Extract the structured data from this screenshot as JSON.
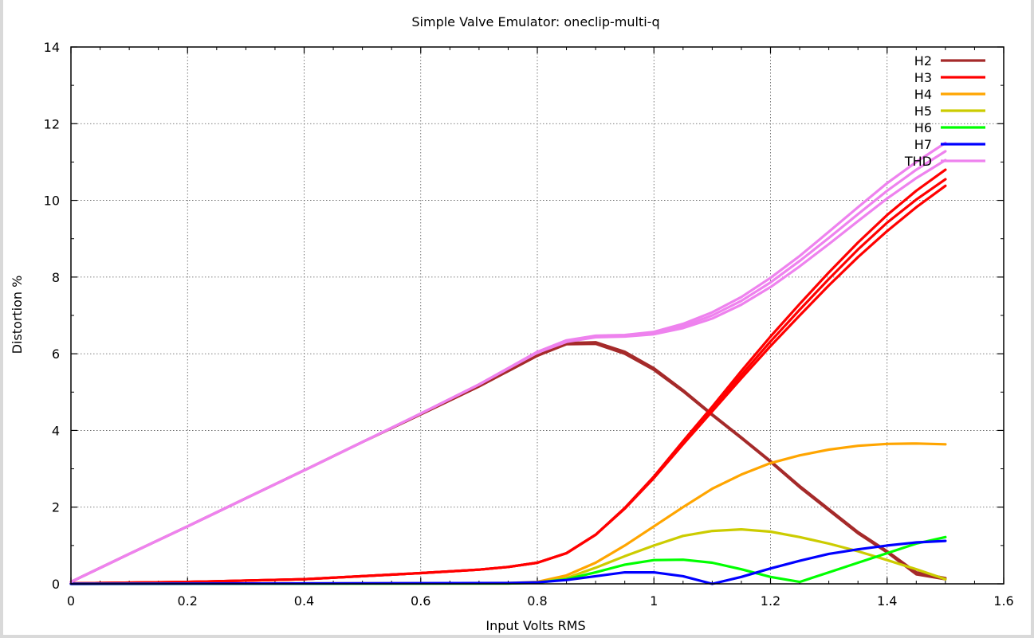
{
  "chart_data": {
    "type": "line",
    "title": "Simple Valve Emulator: oneclip-multi-q",
    "xlabel": "Input Volts RMS",
    "ylabel": "Distortion %",
    "xlim": [
      0,
      1.6
    ],
    "ylim": [
      0,
      14
    ],
    "xticks": [
      "0",
      "0.2",
      "0.4",
      "0.6",
      "0.8",
      "1",
      "1.2",
      "1.4",
      "1.6"
    ],
    "yticks": [
      "0",
      "2",
      "4",
      "6",
      "8",
      "10",
      "12",
      "14"
    ],
    "grid": true,
    "legend_position": "top-right",
    "series": [
      {
        "name": "H2",
        "color": "#a52a2a",
        "lines": [
          [
            [
              0.0,
              0.05
            ],
            [
              0.1,
              0.78
            ],
            [
              0.2,
              1.5
            ],
            [
              0.3,
              2.23
            ],
            [
              0.4,
              2.96
            ],
            [
              0.5,
              3.7
            ],
            [
              0.6,
              4.42
            ],
            [
              0.7,
              5.15
            ],
            [
              0.8,
              5.95
            ],
            [
              0.85,
              6.28
            ],
            [
              0.9,
              6.3
            ],
            [
              0.95,
              6.05
            ],
            [
              1.0,
              5.62
            ],
            [
              1.05,
              5.05
            ],
            [
              1.1,
              4.42
            ],
            [
              1.15,
              3.82
            ],
            [
              1.2,
              3.2
            ],
            [
              1.25,
              2.55
            ],
            [
              1.3,
              1.95
            ],
            [
              1.35,
              1.35
            ],
            [
              1.4,
              0.85
            ],
            [
              1.45,
              0.3
            ],
            [
              1.5,
              0.15
            ]
          ],
          [
            [
              0.0,
              0.05
            ],
            [
              0.1,
              0.78
            ],
            [
              0.2,
              1.5
            ],
            [
              0.3,
              2.23
            ],
            [
              0.4,
              2.96
            ],
            [
              0.5,
              3.7
            ],
            [
              0.6,
              4.42
            ],
            [
              0.7,
              5.15
            ],
            [
              0.8,
              5.95
            ],
            [
              0.85,
              6.25
            ],
            [
              0.9,
              6.26
            ],
            [
              0.95,
              6.0
            ],
            [
              1.0,
              5.58
            ],
            [
              1.05,
              5.02
            ],
            [
              1.1,
              4.4
            ],
            [
              1.15,
              3.8
            ],
            [
              1.2,
              3.18
            ],
            [
              1.25,
              2.52
            ],
            [
              1.3,
              1.92
            ],
            [
              1.35,
              1.32
            ],
            [
              1.4,
              0.82
            ],
            [
              1.45,
              0.25
            ],
            [
              1.5,
              0.12
            ]
          ]
        ]
      },
      {
        "name": "H3",
        "color": "#ff0000",
        "lines": [
          [
            [
              0.0,
              0.01
            ],
            [
              0.2,
              0.05
            ],
            [
              0.4,
              0.12
            ],
            [
              0.6,
              0.28
            ],
            [
              0.7,
              0.37
            ],
            [
              0.75,
              0.44
            ],
            [
              0.8,
              0.55
            ],
            [
              0.85,
              0.8
            ],
            [
              0.9,
              1.28
            ],
            [
              0.95,
              1.98
            ],
            [
              1.0,
              2.8
            ],
            [
              1.05,
              3.72
            ],
            [
              1.1,
              4.62
            ],
            [
              1.15,
              5.55
            ],
            [
              1.2,
              6.45
            ],
            [
              1.25,
              7.3
            ],
            [
              1.3,
              8.12
            ],
            [
              1.35,
              8.9
            ],
            [
              1.4,
              9.62
            ],
            [
              1.45,
              10.25
            ],
            [
              1.5,
              10.8
            ]
          ],
          [
            [
              0.0,
              0.01
            ],
            [
              0.2,
              0.05
            ],
            [
              0.4,
              0.12
            ],
            [
              0.6,
              0.28
            ],
            [
              0.7,
              0.37
            ],
            [
              0.75,
              0.44
            ],
            [
              0.8,
              0.55
            ],
            [
              0.85,
              0.8
            ],
            [
              0.9,
              1.28
            ],
            [
              0.95,
              1.97
            ],
            [
              1.0,
              2.78
            ],
            [
              1.05,
              3.68
            ],
            [
              1.1,
              4.56
            ],
            [
              1.15,
              5.45
            ],
            [
              1.2,
              6.32
            ],
            [
              1.25,
              7.15
            ],
            [
              1.3,
              7.95
            ],
            [
              1.35,
              8.72
            ],
            [
              1.4,
              9.42
            ],
            [
              1.45,
              10.02
            ],
            [
              1.5,
              10.55
            ]
          ],
          [
            [
              0.0,
              0.01
            ],
            [
              0.2,
              0.05
            ],
            [
              0.4,
              0.12
            ],
            [
              0.6,
              0.28
            ],
            [
              0.7,
              0.37
            ],
            [
              0.75,
              0.44
            ],
            [
              0.8,
              0.55
            ],
            [
              0.85,
              0.8
            ],
            [
              0.9,
              1.28
            ],
            [
              0.95,
              1.96
            ],
            [
              1.0,
              2.76
            ],
            [
              1.05,
              3.64
            ],
            [
              1.1,
              4.5
            ],
            [
              1.15,
              5.36
            ],
            [
              1.2,
              6.2
            ],
            [
              1.25,
              7.0
            ],
            [
              1.3,
              7.78
            ],
            [
              1.35,
              8.52
            ],
            [
              1.4,
              9.2
            ],
            [
              1.45,
              9.82
            ],
            [
              1.5,
              10.38
            ]
          ]
        ]
      },
      {
        "name": "H4",
        "color": "#ffa500",
        "lines": [
          [
            [
              0.0,
              0.0
            ],
            [
              0.75,
              0.02
            ],
            [
              0.8,
              0.05
            ],
            [
              0.85,
              0.22
            ],
            [
              0.9,
              0.55
            ],
            [
              0.95,
              1.0
            ],
            [
              1.0,
              1.5
            ],
            [
              1.05,
              2.0
            ],
            [
              1.1,
              2.48
            ],
            [
              1.15,
              2.85
            ],
            [
              1.2,
              3.15
            ],
            [
              1.25,
              3.35
            ],
            [
              1.3,
              3.5
            ],
            [
              1.35,
              3.6
            ],
            [
              1.4,
              3.65
            ],
            [
              1.45,
              3.66
            ],
            [
              1.5,
              3.64
            ]
          ]
        ]
      },
      {
        "name": "H5",
        "color": "#cccc00",
        "lines": [
          [
            [
              0.0,
              0.0
            ],
            [
              0.75,
              0.01
            ],
            [
              0.8,
              0.04
            ],
            [
              0.85,
              0.15
            ],
            [
              0.9,
              0.42
            ],
            [
              0.95,
              0.72
            ],
            [
              1.0,
              1.0
            ],
            [
              1.05,
              1.25
            ],
            [
              1.1,
              1.38
            ],
            [
              1.15,
              1.42
            ],
            [
              1.2,
              1.36
            ],
            [
              1.25,
              1.22
            ],
            [
              1.3,
              1.05
            ],
            [
              1.35,
              0.85
            ],
            [
              1.4,
              0.62
            ],
            [
              1.45,
              0.38
            ],
            [
              1.5,
              0.12
            ]
          ]
        ]
      },
      {
        "name": "H6",
        "color": "#00ff00",
        "lines": [
          [
            [
              0.0,
              0.0
            ],
            [
              0.75,
              0.01
            ],
            [
              0.8,
              0.03
            ],
            [
              0.85,
              0.12
            ],
            [
              0.9,
              0.3
            ],
            [
              0.95,
              0.5
            ],
            [
              1.0,
              0.62
            ],
            [
              1.05,
              0.63
            ],
            [
              1.1,
              0.55
            ],
            [
              1.15,
              0.38
            ],
            [
              1.2,
              0.18
            ],
            [
              1.25,
              0.05
            ],
            [
              1.3,
              0.3
            ],
            [
              1.35,
              0.55
            ],
            [
              1.4,
              0.8
            ],
            [
              1.45,
              1.05
            ],
            [
              1.5,
              1.22
            ]
          ]
        ]
      },
      {
        "name": "H7",
        "color": "#0000ff",
        "lines": [
          [
            [
              0.0,
              0.0
            ],
            [
              0.75,
              0.02
            ],
            [
              0.8,
              0.04
            ],
            [
              0.85,
              0.1
            ],
            [
              0.9,
              0.2
            ],
            [
              0.95,
              0.3
            ],
            [
              1.0,
              0.3
            ],
            [
              1.05,
              0.2
            ],
            [
              1.1,
              0.0
            ],
            [
              1.15,
              0.18
            ],
            [
              1.2,
              0.4
            ],
            [
              1.25,
              0.6
            ],
            [
              1.3,
              0.78
            ],
            [
              1.35,
              0.9
            ],
            [
              1.4,
              1.0
            ],
            [
              1.45,
              1.08
            ],
            [
              1.5,
              1.12
            ]
          ]
        ]
      },
      {
        "name": "THD",
        "color": "#ee82ee",
        "lines": [
          [
            [
              0.0,
              0.05
            ],
            [
              0.1,
              0.78
            ],
            [
              0.2,
              1.5
            ],
            [
              0.3,
              2.23
            ],
            [
              0.4,
              2.96
            ],
            [
              0.5,
              3.7
            ],
            [
              0.6,
              4.44
            ],
            [
              0.7,
              5.2
            ],
            [
              0.8,
              6.05
            ],
            [
              0.85,
              6.35
            ],
            [
              0.9,
              6.47
            ],
            [
              0.95,
              6.49
            ],
            [
              1.0,
              6.57
            ],
            [
              1.05,
              6.78
            ],
            [
              1.1,
              7.08
            ],
            [
              1.15,
              7.48
            ],
            [
              1.2,
              7.98
            ],
            [
              1.25,
              8.55
            ],
            [
              1.3,
              9.18
            ],
            [
              1.35,
              9.82
            ],
            [
              1.4,
              10.45
            ],
            [
              1.45,
              11.0
            ],
            [
              1.5,
              11.5
            ]
          ],
          [
            [
              0.0,
              0.05
            ],
            [
              0.1,
              0.78
            ],
            [
              0.2,
              1.5
            ],
            [
              0.3,
              2.23
            ],
            [
              0.4,
              2.96
            ],
            [
              0.5,
              3.7
            ],
            [
              0.6,
              4.44
            ],
            [
              0.7,
              5.2
            ],
            [
              0.8,
              6.04
            ],
            [
              0.85,
              6.33
            ],
            [
              0.9,
              6.45
            ],
            [
              0.95,
              6.47
            ],
            [
              1.0,
              6.54
            ],
            [
              1.05,
              6.72
            ],
            [
              1.1,
              7.0
            ],
            [
              1.15,
              7.38
            ],
            [
              1.2,
              7.86
            ],
            [
              1.25,
              8.42
            ],
            [
              1.3,
              9.02
            ],
            [
              1.35,
              9.64
            ],
            [
              1.4,
              10.25
            ],
            [
              1.45,
              10.8
            ],
            [
              1.5,
              11.28
            ]
          ],
          [
            [
              0.0,
              0.05
            ],
            [
              0.1,
              0.78
            ],
            [
              0.2,
              1.5
            ],
            [
              0.3,
              2.23
            ],
            [
              0.4,
              2.96
            ],
            [
              0.5,
              3.7
            ],
            [
              0.6,
              4.44
            ],
            [
              0.7,
              5.2
            ],
            [
              0.8,
              6.03
            ],
            [
              0.85,
              6.31
            ],
            [
              0.9,
              6.43
            ],
            [
              0.95,
              6.45
            ],
            [
              1.0,
              6.51
            ],
            [
              1.05,
              6.67
            ],
            [
              1.1,
              6.92
            ],
            [
              1.15,
              7.28
            ],
            [
              1.2,
              7.74
            ],
            [
              1.25,
              8.28
            ],
            [
              1.3,
              8.86
            ],
            [
              1.35,
              9.46
            ],
            [
              1.4,
              10.05
            ],
            [
              1.45,
              10.58
            ],
            [
              1.5,
              11.05
            ]
          ]
        ]
      }
    ]
  }
}
